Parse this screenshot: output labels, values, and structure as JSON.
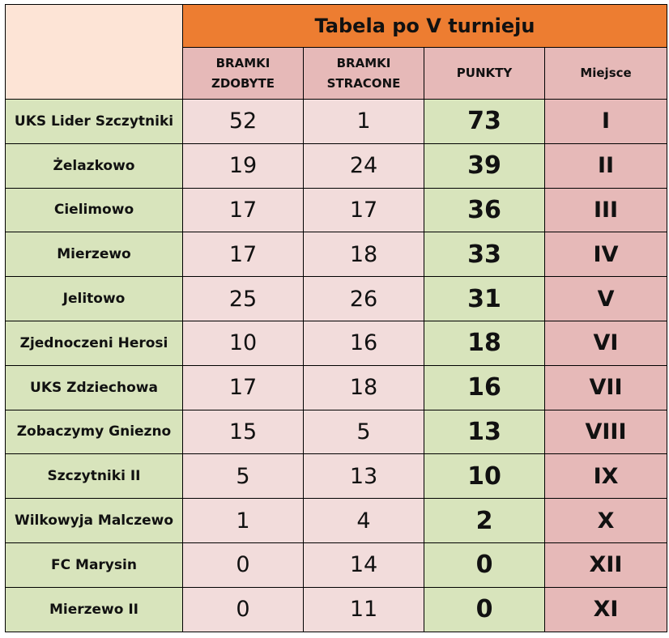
{
  "title": "Tabela po V turnieju",
  "headers": {
    "scored": [
      "BRAMKI",
      "ZDOBYTE"
    ],
    "conceded": [
      "BRAMKI",
      "STRACONE"
    ],
    "points": "PUNKTY",
    "place": "Miejsce"
  },
  "rows": [
    {
      "team": "UKS Lider Szczytniki",
      "scored": "52",
      "conceded": "1",
      "points": "73",
      "place": "I"
    },
    {
      "team": "Żelazkowo",
      "scored": "19",
      "conceded": "24",
      "points": "39",
      "place": "II"
    },
    {
      "team": "Cielimowo",
      "scored": "17",
      "conceded": "17",
      "points": "36",
      "place": "III"
    },
    {
      "team": "Mierzewo",
      "scored": "17",
      "conceded": "18",
      "points": "33",
      "place": "IV"
    },
    {
      "team": "Jelitowo",
      "scored": "25",
      "conceded": "26",
      "points": "31",
      "place": "V"
    },
    {
      "team": "Zjednoczeni Herosi",
      "scored": "10",
      "conceded": "16",
      "points": "18",
      "place": "VI"
    },
    {
      "team": "UKS Zdziechowa",
      "scored": "17",
      "conceded": "18",
      "points": "16",
      "place": "VII"
    },
    {
      "team": "Zobaczymy Gniezno",
      "scored": "15",
      "conceded": "5",
      "points": "13",
      "place": "VIII"
    },
    {
      "team": "Szczytniki II",
      "scored": "5",
      "conceded": "13",
      "points": "10",
      "place": "IX"
    },
    {
      "team": "Wilkowyja Malczewo",
      "scored": "1",
      "conceded": "4",
      "points": "2",
      "place": "X"
    },
    {
      "team": "FC Marysin",
      "scored": "0",
      "conceded": "14",
      "points": "0",
      "place": "XII"
    },
    {
      "team": "Mierzewo II",
      "scored": "0",
      "conceded": "11",
      "points": "0",
      "place": "XI"
    }
  ]
}
